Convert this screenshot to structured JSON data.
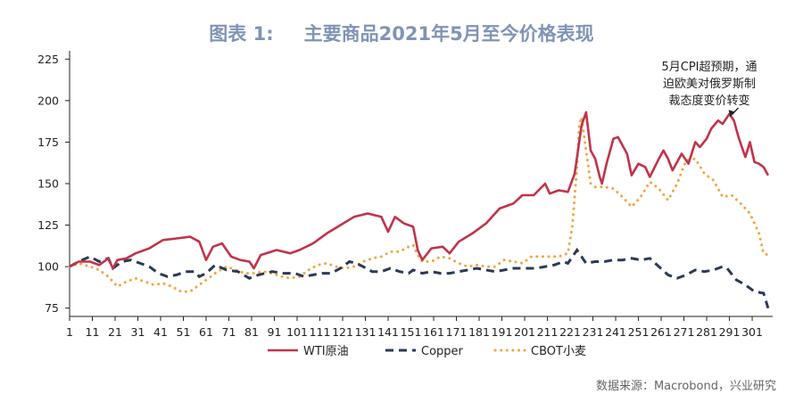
{
  "figure": {
    "title_number": "图表 1:",
    "title_text": "主要商品2021年5月至今价格表现",
    "source": "数据来源：Macrobond，兴业研究"
  },
  "chart_data": {
    "type": "line",
    "title": "主要商品2021年5月至今价格表现",
    "xlabel": "",
    "ylabel": "",
    "ylim": [
      70,
      230
    ],
    "yticks": [
      75,
      100,
      125,
      150,
      175,
      200,
      225
    ],
    "xlim": [
      1,
      310
    ],
    "xticks": [
      "1",
      "11",
      "21",
      "31",
      "41",
      "51",
      "61",
      "71",
      "81",
      "91",
      "101",
      "111",
      "121",
      "131",
      "141",
      "151",
      "161",
      "171",
      "181",
      "191",
      "201",
      "211",
      "221",
      "231",
      "241",
      "251",
      "261",
      "271",
      "281",
      "291",
      "301"
    ],
    "grid": false,
    "legend_position": "bottom",
    "annotation": {
      "lines": [
        "5月CPI超预期，通",
        "迫欧美对俄罗斯制",
        "裁态度变价转变"
      ],
      "x": 291,
      "y": 189
    },
    "series": [
      {
        "name": "WTI原油",
        "color": "#c0334b",
        "style": "solid",
        "points": [
          [
            1,
            100
          ],
          [
            5,
            103
          ],
          [
            10,
            103
          ],
          [
            14,
            101
          ],
          [
            18,
            105
          ],
          [
            20,
            99
          ],
          [
            22,
            104
          ],
          [
            26,
            105
          ],
          [
            30,
            108
          ],
          [
            36,
            111
          ],
          [
            42,
            116
          ],
          [
            48,
            117
          ],
          [
            54,
            118
          ],
          [
            58,
            115
          ],
          [
            61,
            104
          ],
          [
            64,
            112
          ],
          [
            68,
            114
          ],
          [
            72,
            106
          ],
          [
            76,
            104
          ],
          [
            80,
            103
          ],
          [
            82,
            99
          ],
          [
            85,
            107
          ],
          [
            92,
            110
          ],
          [
            98,
            108
          ],
          [
            102,
            110
          ],
          [
            108,
            114
          ],
          [
            114,
            120
          ],
          [
            120,
            125
          ],
          [
            126,
            130
          ],
          [
            132,
            132
          ],
          [
            138,
            130
          ],
          [
            141,
            121
          ],
          [
            144,
            130
          ],
          [
            148,
            126
          ],
          [
            152,
            124
          ],
          [
            154,
            110
          ],
          [
            156,
            104
          ],
          [
            160,
            111
          ],
          [
            165,
            112
          ],
          [
            168,
            108
          ],
          [
            172,
            115
          ],
          [
            178,
            120
          ],
          [
            184,
            126
          ],
          [
            190,
            135
          ],
          [
            196,
            138
          ],
          [
            200,
            143
          ],
          [
            205,
            143
          ],
          [
            210,
            150
          ],
          [
            212,
            144
          ],
          [
            216,
            146
          ],
          [
            220,
            145
          ],
          [
            223,
            156
          ],
          [
            226,
            185
          ],
          [
            228,
            193
          ],
          [
            230,
            170
          ],
          [
            232,
            165
          ],
          [
            234,
            154
          ],
          [
            235,
            150
          ],
          [
            237,
            162
          ],
          [
            240,
            177
          ],
          [
            242,
            178
          ],
          [
            246,
            168
          ],
          [
            248,
            155
          ],
          [
            251,
            162
          ],
          [
            254,
            160
          ],
          [
            256,
            154
          ],
          [
            260,
            165
          ],
          [
            262,
            170
          ],
          [
            264,
            165
          ],
          [
            266,
            158
          ],
          [
            270,
            168
          ],
          [
            273,
            162
          ],
          [
            276,
            175
          ],
          [
            278,
            172
          ],
          [
            281,
            177
          ],
          [
            283,
            183
          ],
          [
            286,
            188
          ],
          [
            288,
            186
          ],
          [
            291,
            192
          ],
          [
            293,
            188
          ],
          [
            295,
            178
          ],
          [
            297,
            170
          ],
          [
            298,
            166
          ],
          [
            300,
            175
          ],
          [
            302,
            163
          ],
          [
            304,
            162
          ],
          [
            306,
            160
          ],
          [
            308,
            155
          ]
        ]
      },
      {
        "name": "Copper",
        "color": "#2b3a55",
        "style": "dashed",
        "points": [
          [
            1,
            100
          ],
          [
            5,
            103
          ],
          [
            10,
            106
          ],
          [
            14,
            103
          ],
          [
            18,
            105
          ],
          [
            20,
            99
          ],
          [
            24,
            103
          ],
          [
            28,
            104
          ],
          [
            32,
            102
          ],
          [
            36,
            100
          ],
          [
            40,
            96
          ],
          [
            44,
            94
          ],
          [
            48,
            95
          ],
          [
            52,
            97
          ],
          [
            56,
            97
          ],
          [
            58,
            94
          ],
          [
            61,
            96
          ],
          [
            65,
            101
          ],
          [
            70,
            98
          ],
          [
            75,
            97
          ],
          [
            80,
            93
          ],
          [
            84,
            95
          ],
          [
            90,
            97
          ],
          [
            95,
            96
          ],
          [
            100,
            96
          ],
          [
            104,
            94
          ],
          [
            108,
            95
          ],
          [
            112,
            96
          ],
          [
            116,
            96
          ],
          [
            120,
            99
          ],
          [
            124,
            103
          ],
          [
            127,
            102
          ],
          [
            130,
            100
          ],
          [
            134,
            97
          ],
          [
            138,
            97
          ],
          [
            142,
            99
          ],
          [
            146,
            97
          ],
          [
            150,
            96
          ],
          [
            152,
            98
          ],
          [
            156,
            96
          ],
          [
            160,
            97
          ],
          [
            164,
            96
          ],
          [
            168,
            96
          ],
          [
            172,
            97
          ],
          [
            176,
            98
          ],
          [
            180,
            99
          ],
          [
            184,
            98
          ],
          [
            188,
            97
          ],
          [
            192,
            98
          ],
          [
            196,
            99
          ],
          [
            200,
            99
          ],
          [
            206,
            99
          ],
          [
            210,
            100
          ],
          [
            214,
            101
          ],
          [
            218,
            103
          ],
          [
            220,
            102
          ],
          [
            224,
            110
          ],
          [
            226,
            106
          ],
          [
            228,
            102
          ],
          [
            232,
            103
          ],
          [
            236,
            103
          ],
          [
            240,
            104
          ],
          [
            244,
            104
          ],
          [
            248,
            105
          ],
          [
            252,
            104
          ],
          [
            256,
            105
          ],
          [
            260,
            100
          ],
          [
            264,
            95
          ],
          [
            268,
            93
          ],
          [
            272,
            95
          ],
          [
            276,
            98
          ],
          [
            280,
            97
          ],
          [
            284,
            98
          ],
          [
            288,
            100
          ],
          [
            290,
            99
          ],
          [
            294,
            92
          ],
          [
            298,
            89
          ],
          [
            302,
            85
          ],
          [
            306,
            84
          ],
          [
            308,
            75
          ]
        ]
      },
      {
        "name": "CBOT小麦",
        "color": "#f2a541",
        "style": "dotted",
        "points": [
          [
            1,
            100
          ],
          [
            5,
            102
          ],
          [
            10,
            100
          ],
          [
            14,
            98
          ],
          [
            18,
            94
          ],
          [
            22,
            88
          ],
          [
            26,
            91
          ],
          [
            30,
            93
          ],
          [
            34,
            91
          ],
          [
            38,
            89
          ],
          [
            42,
            90
          ],
          [
            46,
            88
          ],
          [
            50,
            85
          ],
          [
            54,
            85
          ],
          [
            58,
            89
          ],
          [
            62,
            93
          ],
          [
            66,
            97
          ],
          [
            70,
            100
          ],
          [
            74,
            98
          ],
          [
            78,
            96
          ],
          [
            82,
            96
          ],
          [
            86,
            97
          ],
          [
            90,
            96
          ],
          [
            94,
            94
          ],
          [
            98,
            93
          ],
          [
            102,
            94
          ],
          [
            106,
            98
          ],
          [
            110,
            101
          ],
          [
            114,
            102
          ],
          [
            118,
            100
          ],
          [
            122,
            99
          ],
          [
            126,
            100
          ],
          [
            130,
            103
          ],
          [
            134,
            105
          ],
          [
            138,
            106
          ],
          [
            142,
            109
          ],
          [
            146,
            109
          ],
          [
            150,
            112
          ],
          [
            152,
            113
          ],
          [
            154,
            107
          ],
          [
            156,
            103
          ],
          [
            160,
            103
          ],
          [
            164,
            106
          ],
          [
            168,
            105
          ],
          [
            172,
            102
          ],
          [
            176,
            100
          ],
          [
            180,
            101
          ],
          [
            184,
            100
          ],
          [
            188,
            100
          ],
          [
            192,
            104
          ],
          [
            196,
            103
          ],
          [
            200,
            102
          ],
          [
            204,
            106
          ],
          [
            208,
            106
          ],
          [
            212,
            106
          ],
          [
            216,
            106
          ],
          [
            220,
            108
          ],
          [
            222,
            125
          ],
          [
            224,
            160
          ],
          [
            225,
            185
          ],
          [
            226,
            190
          ],
          [
            228,
            170
          ],
          [
            230,
            150
          ],
          [
            232,
            148
          ],
          [
            236,
            148
          ],
          [
            240,
            147
          ],
          [
            244,
            142
          ],
          [
            248,
            136
          ],
          [
            252,
            142
          ],
          [
            256,
            151
          ],
          [
            260,
            147
          ],
          [
            264,
            140
          ],
          [
            268,
            150
          ],
          [
            272,
            164
          ],
          [
            276,
            165
          ],
          [
            280,
            156
          ],
          [
            284,
            152
          ],
          [
            288,
            142
          ],
          [
            292,
            143
          ],
          [
            296,
            138
          ],
          [
            300,
            132
          ],
          [
            304,
            120
          ],
          [
            306,
            108
          ],
          [
            308,
            107
          ]
        ]
      }
    ]
  }
}
